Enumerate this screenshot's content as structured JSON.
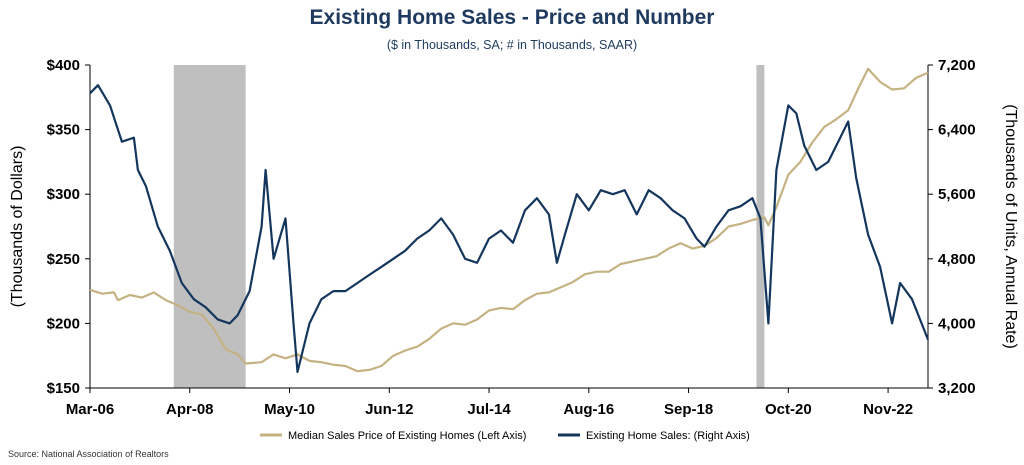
{
  "header": {
    "title": "Existing Home Sales - Price and Number",
    "subtitle": "($ in Thousands, SA; # in Thousands, SAAR)"
  },
  "source": "Source: National Association of Realtors",
  "chart_data": {
    "type": "line",
    "title": "Existing Home Sales - Price and Number",
    "subtitle": "($ in Thousands, SA; # in Thousands, SAAR)",
    "x_range": [
      "2006-03",
      "2023-09"
    ],
    "x_ticks": [
      "Mar-06",
      "Apr-08",
      "May-10",
      "Jun-12",
      "Jul-14",
      "Aug-16",
      "Sep-18",
      "Oct-20",
      "Nov-22"
    ],
    "x_tick_dates": [
      "2006-03",
      "2008-04",
      "2010-05",
      "2012-06",
      "2014-07",
      "2016-08",
      "2018-09",
      "2020-10",
      "2022-11"
    ],
    "left_axis": {
      "label": "(Thousands of Dollars)",
      "range": [
        150,
        400
      ],
      "ticks": [
        150,
        200,
        250,
        300,
        350,
        400
      ],
      "tick_labels": [
        "$150",
        "$200",
        "$250",
        "$300",
        "$350",
        "$400"
      ]
    },
    "right_axis": {
      "label": "(Thousands of Units, Annual Rate)",
      "range": [
        3200,
        7200
      ],
      "ticks": [
        3200,
        4000,
        4800,
        5600,
        6400,
        7200
      ],
      "tick_labels": [
        "3,200",
        "4,000",
        "4,800",
        "5,600",
        "6,400",
        "7,200"
      ]
    },
    "recessions": [
      {
        "start": "2007-12",
        "end": "2009-06"
      },
      {
        "start": "2020-02",
        "end": "2020-04"
      }
    ],
    "grid": false,
    "legend": "bottom",
    "series": [
      {
        "name": "Median Sales Price of Existing Homes (Left Axis)",
        "axis": "left",
        "color": "#c5b283",
        "points": [
          [
            "2006-03",
            226
          ],
          [
            "2006-06",
            223
          ],
          [
            "2006-09",
            224
          ],
          [
            "2006-10",
            218
          ],
          [
            "2007-01",
            222
          ],
          [
            "2007-04",
            220
          ],
          [
            "2007-07",
            224
          ],
          [
            "2007-10",
            218
          ],
          [
            "2008-01",
            214
          ],
          [
            "2008-04",
            209
          ],
          [
            "2008-07",
            207
          ],
          [
            "2008-10",
            196
          ],
          [
            "2009-01",
            180
          ],
          [
            "2009-04",
            176
          ],
          [
            "2009-06",
            169
          ],
          [
            "2009-10",
            170
          ],
          [
            "2010-01",
            176
          ],
          [
            "2010-04",
            173
          ],
          [
            "2010-07",
            176
          ],
          [
            "2010-10",
            171
          ],
          [
            "2011-01",
            170
          ],
          [
            "2011-04",
            168
          ],
          [
            "2011-07",
            167
          ],
          [
            "2011-10",
            163
          ],
          [
            "2012-01",
            164
          ],
          [
            "2012-04",
            167
          ],
          [
            "2012-07",
            175
          ],
          [
            "2012-10",
            179
          ],
          [
            "2013-01",
            182
          ],
          [
            "2013-04",
            188
          ],
          [
            "2013-07",
            196
          ],
          [
            "2013-10",
            200
          ],
          [
            "2014-01",
            199
          ],
          [
            "2014-04",
            203
          ],
          [
            "2014-07",
            210
          ],
          [
            "2014-10",
            212
          ],
          [
            "2015-01",
            211
          ],
          [
            "2015-04",
            218
          ],
          [
            "2015-07",
            223
          ],
          [
            "2015-10",
            224
          ],
          [
            "2016-01",
            228
          ],
          [
            "2016-04",
            232
          ],
          [
            "2016-07",
            238
          ],
          [
            "2016-10",
            240
          ],
          [
            "2017-01",
            240
          ],
          [
            "2017-04",
            246
          ],
          [
            "2017-07",
            248
          ],
          [
            "2017-10",
            250
          ],
          [
            "2018-01",
            252
          ],
          [
            "2018-04",
            258
          ],
          [
            "2018-07",
            262
          ],
          [
            "2018-10",
            258
          ],
          [
            "2019-01",
            260
          ],
          [
            "2019-04",
            266
          ],
          [
            "2019-07",
            275
          ],
          [
            "2019-10",
            277
          ],
          [
            "2020-01",
            280
          ],
          [
            "2020-04",
            282
          ],
          [
            "2020-05",
            276
          ],
          [
            "2020-07",
            290
          ],
          [
            "2020-10",
            315
          ],
          [
            "2021-01",
            325
          ],
          [
            "2021-04",
            340
          ],
          [
            "2021-07",
            352
          ],
          [
            "2021-10",
            358
          ],
          [
            "2022-01",
            365
          ],
          [
            "2022-04",
            385
          ],
          [
            "2022-06",
            397
          ],
          [
            "2022-09",
            387
          ],
          [
            "2022-12",
            381
          ],
          [
            "2023-03",
            382
          ],
          [
            "2023-06",
            390
          ],
          [
            "2023-09",
            394
          ]
        ]
      },
      {
        "name": "Existing Home Sales: (Right Axis)",
        "axis": "right",
        "color": "#14365d",
        "points": [
          [
            "2006-03",
            6850
          ],
          [
            "2006-05",
            6950
          ],
          [
            "2006-08",
            6700
          ],
          [
            "2006-11",
            6250
          ],
          [
            "2007-02",
            6300
          ],
          [
            "2007-03",
            5900
          ],
          [
            "2007-05",
            5700
          ],
          [
            "2007-08",
            5200
          ],
          [
            "2007-11",
            4900
          ],
          [
            "2008-02",
            4500
          ],
          [
            "2008-05",
            4300
          ],
          [
            "2008-08",
            4200
          ],
          [
            "2008-11",
            4050
          ],
          [
            "2009-02",
            4000
          ],
          [
            "2009-04",
            4100
          ],
          [
            "2009-07",
            4400
          ],
          [
            "2009-10",
            5200
          ],
          [
            "2009-11",
            5900
          ],
          [
            "2010-01",
            4800
          ],
          [
            "2010-04",
            5300
          ],
          [
            "2010-06",
            4000
          ],
          [
            "2010-07",
            3400
          ],
          [
            "2010-10",
            4000
          ],
          [
            "2011-01",
            4300
          ],
          [
            "2011-04",
            4400
          ],
          [
            "2011-07",
            4400
          ],
          [
            "2011-10",
            4500
          ],
          [
            "2012-01",
            4600
          ],
          [
            "2012-04",
            4700
          ],
          [
            "2012-07",
            4800
          ],
          [
            "2012-10",
            4900
          ],
          [
            "2013-01",
            5050
          ],
          [
            "2013-04",
            5150
          ],
          [
            "2013-07",
            5300
          ],
          [
            "2013-10",
            5100
          ],
          [
            "2014-01",
            4800
          ],
          [
            "2014-04",
            4750
          ],
          [
            "2014-07",
            5050
          ],
          [
            "2014-10",
            5150
          ],
          [
            "2015-01",
            5000
          ],
          [
            "2015-04",
            5400
          ],
          [
            "2015-07",
            5550
          ],
          [
            "2015-10",
            5350
          ],
          [
            "2015-12",
            4750
          ],
          [
            "2016-02",
            5100
          ],
          [
            "2016-05",
            5600
          ],
          [
            "2016-08",
            5400
          ],
          [
            "2016-11",
            5650
          ],
          [
            "2017-02",
            5600
          ],
          [
            "2017-05",
            5650
          ],
          [
            "2017-08",
            5350
          ],
          [
            "2017-11",
            5650
          ],
          [
            "2018-02",
            5550
          ],
          [
            "2018-05",
            5400
          ],
          [
            "2018-08",
            5300
          ],
          [
            "2018-11",
            5050
          ],
          [
            "2019-01",
            4950
          ],
          [
            "2019-04",
            5200
          ],
          [
            "2019-07",
            5400
          ],
          [
            "2019-10",
            5450
          ],
          [
            "2020-01",
            5550
          ],
          [
            "2020-03",
            5300
          ],
          [
            "2020-05",
            4000
          ],
          [
            "2020-07",
            5900
          ],
          [
            "2020-10",
            6700
          ],
          [
            "2020-12",
            6600
          ],
          [
            "2021-02",
            6200
          ],
          [
            "2021-05",
            5900
          ],
          [
            "2021-08",
            6000
          ],
          [
            "2021-11",
            6300
          ],
          [
            "2022-01",
            6500
          ],
          [
            "2022-03",
            5800
          ],
          [
            "2022-06",
            5100
          ],
          [
            "2022-09",
            4700
          ],
          [
            "2022-12",
            4000
          ],
          [
            "2023-02",
            4500
          ],
          [
            "2023-05",
            4300
          ],
          [
            "2023-07",
            4050
          ],
          [
            "2023-09",
            3800
          ]
        ]
      }
    ]
  }
}
